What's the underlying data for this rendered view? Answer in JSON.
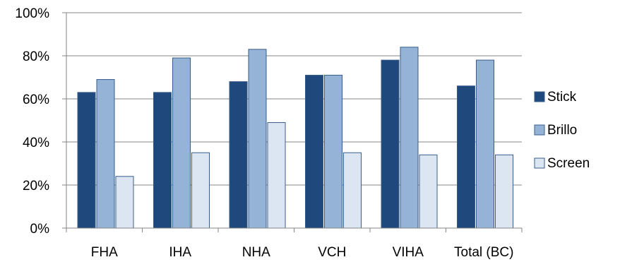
{
  "chart_data": {
    "type": "bar",
    "categories": [
      "FHA",
      "IHA",
      "NHA",
      "VCH",
      "VIHA",
      "Total (BC)"
    ],
    "series": [
      {
        "name": "Stick",
        "values": [
          63,
          63,
          68,
          71,
          78,
          66
        ],
        "color": "#1f497d"
      },
      {
        "name": "Brillo",
        "values": [
          69,
          79,
          83,
          71,
          84,
          78
        ],
        "color": "#95b3d7"
      },
      {
        "name": "Screen",
        "values": [
          24,
          35,
          49,
          35,
          34,
          34
        ],
        "color": "#dce6f2"
      }
    ],
    "yticks": [
      "0%",
      "20%",
      "40%",
      "60%",
      "80%",
      "100%"
    ],
    "ylim": [
      0,
      100
    ],
    "grid": true,
    "legend_position": "right",
    "title": "",
    "xlabel": "",
    "ylabel": ""
  }
}
